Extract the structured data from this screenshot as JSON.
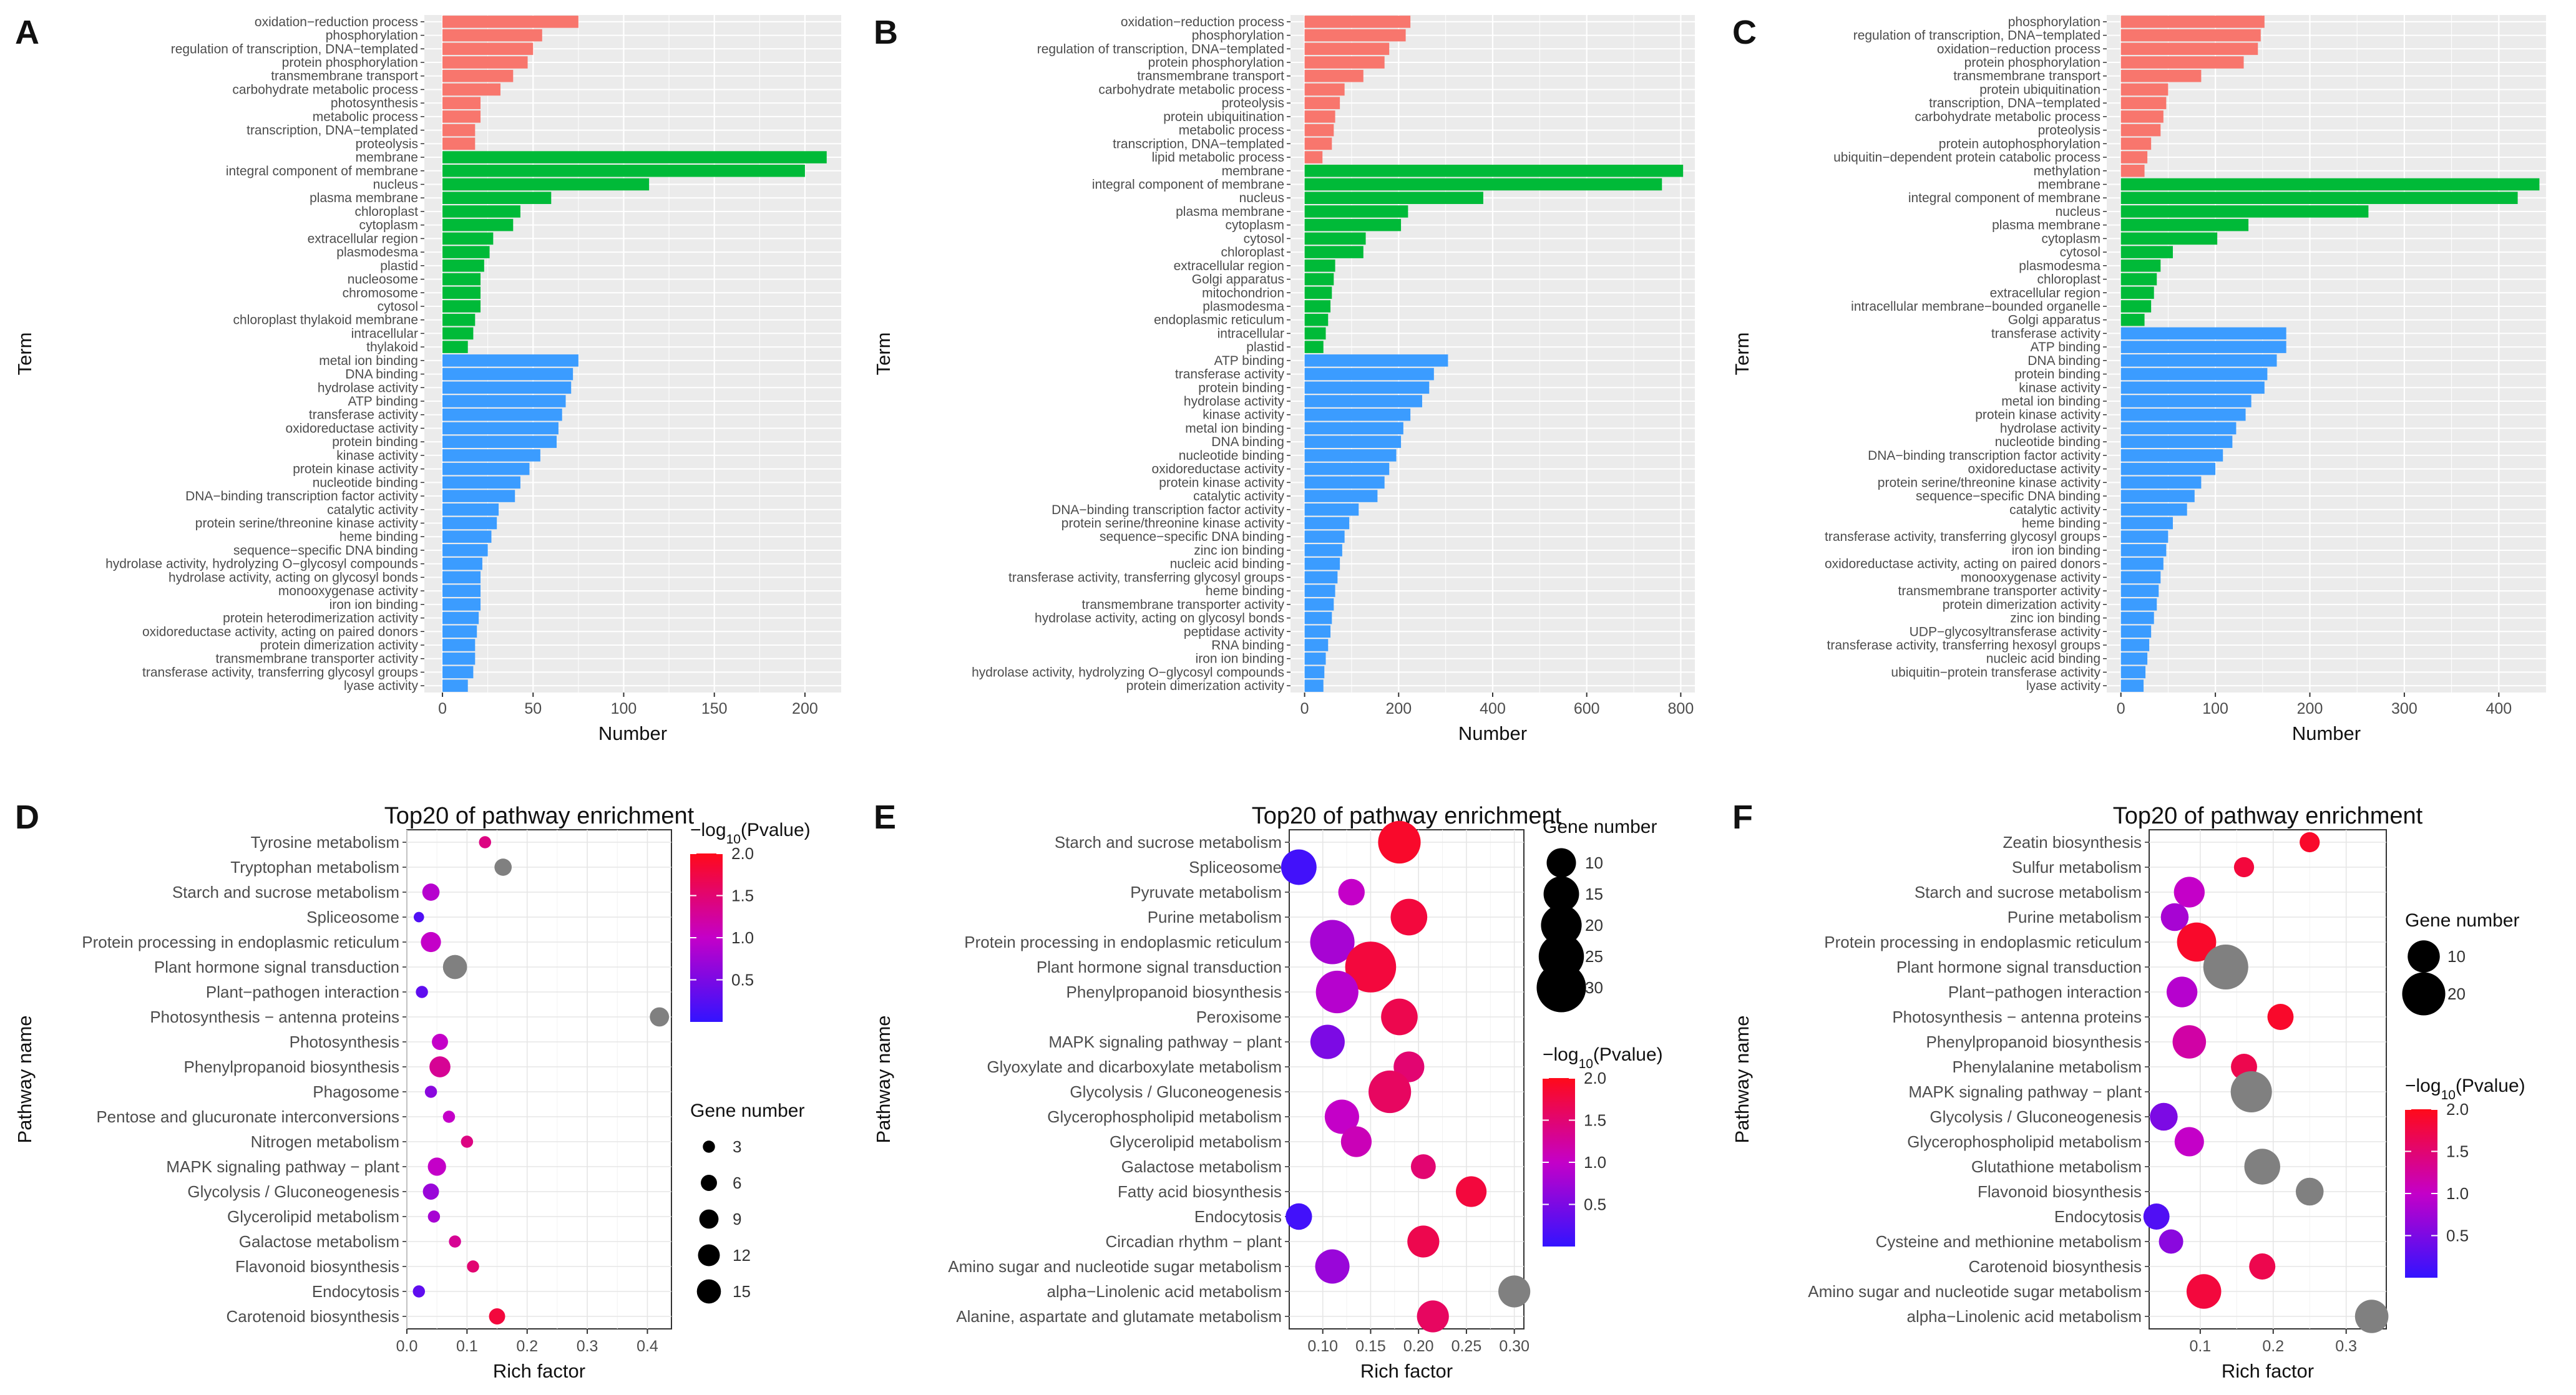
{
  "colors": {
    "bp": "#f8766d",
    "cc": "#00ba38",
    "mf": "#3b9cff",
    "panel_bg": "#ebebeb",
    "grid": "#ffffff",
    "grey_dot": "#808080"
  },
  "chart_data": [
    {
      "panel": "A",
      "type": "bar",
      "orientation": "horizontal",
      "xlabel": "Number",
      "ylabel": "Term",
      "xlim": [
        -10,
        220
      ],
      "xticks": [
        0,
        50,
        100,
        150,
        200
      ],
      "categories": [
        "oxidation−reduction process",
        "phosphorylation",
        "regulation of transcription, DNA−templated",
        "protein phosphorylation",
        "transmembrane transport",
        "carbohydrate metabolic process",
        "photosynthesis",
        "metabolic process",
        "transcription, DNA−templated",
        "proteolysis",
        "membrane",
        "integral component of membrane",
        "nucleus",
        "plasma membrane",
        "chloroplast",
        "cytoplasm",
        "extracellular region",
        "plasmodesma",
        "plastid",
        "nucleosome",
        "chromosome",
        "cytosol",
        "chloroplast thylakoid membrane",
        "intracellular",
        "thylakoid",
        "metal ion binding",
        "DNA binding",
        "hydrolase activity",
        "ATP binding",
        "transferase activity",
        "oxidoreductase activity",
        "protein binding",
        "kinase activity",
        "protein kinase activity",
        "nucleotide binding",
        "DNA−binding transcription factor activity",
        "catalytic activity",
        "protein serine/threonine kinase activity",
        "heme binding",
        "sequence−specific DNA binding",
        "hydrolase activity, hydrolyzing O−glycosyl compounds",
        "hydrolase activity, acting on glycosyl bonds",
        "monooxygenase activity",
        "iron ion binding",
        "protein heterodimerization activity",
        "oxidoreductase activity, acting on paired donors",
        "protein dimerization activity",
        "transmembrane transporter activity",
        "transferase activity, transferring glycosyl groups",
        "lyase activity"
      ],
      "values": [
        75,
        55,
        50,
        47,
        39,
        32,
        21,
        21,
        18,
        18,
        212,
        200,
        114,
        60,
        43,
        39,
        28,
        26,
        23,
        21,
        21,
        21,
        18,
        17,
        14,
        75,
        72,
        71,
        68,
        66,
        64,
        63,
        54,
        48,
        43,
        40,
        31,
        30,
        27,
        25,
        22,
        21,
        21,
        21,
        20,
        19,
        18,
        18,
        17,
        14
      ],
      "groups": [
        "bp",
        "bp",
        "bp",
        "bp",
        "bp",
        "bp",
        "bp",
        "bp",
        "bp",
        "bp",
        "cc",
        "cc",
        "cc",
        "cc",
        "cc",
        "cc",
        "cc",
        "cc",
        "cc",
        "cc",
        "cc",
        "cc",
        "cc",
        "cc",
        "cc",
        "mf",
        "mf",
        "mf",
        "mf",
        "mf",
        "mf",
        "mf",
        "mf",
        "mf",
        "mf",
        "mf",
        "mf",
        "mf",
        "mf",
        "mf",
        "mf",
        "mf",
        "mf",
        "mf",
        "mf",
        "mf",
        "mf",
        "mf",
        "mf",
        "mf"
      ]
    },
    {
      "panel": "B",
      "type": "bar",
      "orientation": "horizontal",
      "xlabel": "Number",
      "ylabel": "Term",
      "xlim": [
        -30,
        830
      ],
      "xticks": [
        0,
        200,
        400,
        600,
        800
      ],
      "categories": [
        "oxidation−reduction process",
        "phosphorylation",
        "regulation of transcription, DNA−templated",
        "protein phosphorylation",
        "transmembrane transport",
        "carbohydrate metabolic process",
        "proteolysis",
        "protein ubiquitination",
        "metabolic process",
        "transcription, DNA−templated",
        "lipid metabolic process",
        "membrane",
        "integral component of membrane",
        "nucleus",
        "plasma membrane",
        "cytoplasm",
        "cytosol",
        "chloroplast",
        "extracellular region",
        "Golgi apparatus",
        "mitochondrion",
        "plasmodesma",
        "endoplasmic reticulum",
        "intracellular",
        "plastid",
        "ATP binding",
        "transferase activity",
        "protein binding",
        "hydrolase activity",
        "kinase activity",
        "metal ion binding",
        "DNA binding",
        "nucleotide binding",
        "oxidoreductase activity",
        "protein kinase activity",
        "catalytic activity",
        "DNA−binding transcription factor activity",
        "protein serine/threonine kinase activity",
        "sequence−specific DNA binding",
        "zinc ion binding",
        "nucleic acid binding",
        "transferase activity, transferring glycosyl groups",
        "heme binding",
        "transmembrane transporter activity",
        "hydrolase activity, acting on glycosyl bonds",
        "peptidase activity",
        "RNA binding",
        "iron ion binding",
        "hydrolase activity, hydrolyzing O−glycosyl compounds",
        "protein dimerization activity"
      ],
      "values": [
        225,
        215,
        180,
        170,
        125,
        85,
        75,
        65,
        62,
        58,
        38,
        805,
        760,
        380,
        220,
        205,
        130,
        125,
        65,
        62,
        58,
        55,
        50,
        45,
        40,
        305,
        275,
        265,
        250,
        225,
        210,
        205,
        195,
        180,
        170,
        155,
        115,
        95,
        85,
        80,
        75,
        70,
        65,
        62,
        58,
        55,
        50,
        45,
        42,
        40
      ],
      "groups": [
        "bp",
        "bp",
        "bp",
        "bp",
        "bp",
        "bp",
        "bp",
        "bp",
        "bp",
        "bp",
        "bp",
        "cc",
        "cc",
        "cc",
        "cc",
        "cc",
        "cc",
        "cc",
        "cc",
        "cc",
        "cc",
        "cc",
        "cc",
        "cc",
        "cc",
        "mf",
        "mf",
        "mf",
        "mf",
        "mf",
        "mf",
        "mf",
        "mf",
        "mf",
        "mf",
        "mf",
        "mf",
        "mf",
        "mf",
        "mf",
        "mf",
        "mf",
        "mf",
        "mf",
        "mf",
        "mf",
        "mf",
        "mf",
        "mf",
        "mf"
      ]
    },
    {
      "panel": "C",
      "type": "bar",
      "orientation": "horizontal",
      "xlabel": "Number",
      "ylabel": "Term",
      "xlim": [
        -15,
        450
      ],
      "xticks": [
        0,
        100,
        200,
        300,
        400
      ],
      "categories": [
        "phosphorylation",
        "regulation of transcription, DNA−templated",
        "oxidation−reduction process",
        "protein phosphorylation",
        "transmembrane transport",
        "protein ubiquitination",
        "transcription, DNA−templated",
        "carbohydrate metabolic process",
        "proteolysis",
        "protein autophosphorylation",
        "ubiquitin−dependent protein catabolic process",
        "methylation",
        "membrane",
        "integral component of membrane",
        "nucleus",
        "plasma membrane",
        "cytoplasm",
        "cytosol",
        "plasmodesma",
        "chloroplast",
        "extracellular region",
        "intracellular membrane−bounded organelle",
        "Golgi apparatus",
        "transferase activity",
        "ATP binding",
        "DNA binding",
        "protein binding",
        "kinase activity",
        "metal ion binding",
        "protein kinase activity",
        "hydrolase activity",
        "nucleotide binding",
        "DNA−binding transcription factor activity",
        "oxidoreductase activity",
        "protein serine/threonine kinase activity",
        "sequence−specific DNA binding",
        "catalytic activity",
        "heme binding",
        "transferase activity, transferring glycosyl groups",
        "iron ion binding",
        "oxidoreductase activity, acting on paired donors",
        "monooxygenase activity",
        "transmembrane transporter activity",
        "protein dimerization activity",
        "zinc ion binding",
        "UDP−glycosyltransferase activity",
        "transferase activity, transferring hexosyl groups",
        "nucleic acid binding",
        "ubiquitin−protein transferase activity",
        "lyase activity"
      ],
      "values": [
        152,
        148,
        145,
        130,
        85,
        50,
        48,
        45,
        42,
        32,
        28,
        25,
        443,
        420,
        262,
        135,
        102,
        55,
        42,
        38,
        35,
        32,
        25,
        175,
        175,
        165,
        155,
        152,
        138,
        132,
        122,
        118,
        108,
        100,
        85,
        78,
        70,
        55,
        50,
        48,
        45,
        42,
        40,
        38,
        35,
        32,
        30,
        28,
        26,
        24
      ],
      "groups": [
        "bp",
        "bp",
        "bp",
        "bp",
        "bp",
        "bp",
        "bp",
        "bp",
        "bp",
        "bp",
        "bp",
        "bp",
        "cc",
        "cc",
        "cc",
        "cc",
        "cc",
        "cc",
        "cc",
        "cc",
        "cc",
        "cc",
        "cc",
        "mf",
        "mf",
        "mf",
        "mf",
        "mf",
        "mf",
        "mf",
        "mf",
        "mf",
        "mf",
        "mf",
        "mf",
        "mf",
        "mf",
        "mf",
        "mf",
        "mf",
        "mf",
        "mf",
        "mf",
        "mf",
        "mf",
        "mf",
        "mf",
        "mf",
        "mf",
        "mf"
      ]
    },
    {
      "panel": "D",
      "type": "scatter",
      "title": "Top20 of pathway enrichment",
      "xlabel": "Rich factor",
      "ylabel": "Pathway name",
      "xlim": [
        0,
        0.44
      ],
      "xticks": [
        0.0,
        0.1,
        0.2,
        0.3,
        0.4
      ],
      "xtick_labels": [
        "0.0",
        "0.1",
        "0.2",
        "0.3",
        "0.4"
      ],
      "pathways": [
        "Tyrosine metabolism",
        "Tryptophan metabolism",
        "Starch and sucrose metabolism",
        "Spliceosome",
        "Protein processing in endoplasmic reticulum",
        "Plant hormone signal transduction",
        "Plant−pathogen interaction",
        "Photosynthesis − antenna proteins",
        "Photosynthesis",
        "Phenylpropanoid biosynthesis",
        "Phagosome",
        "Pentose and glucuronate interconversions",
        "Nitrogen metabolism",
        "MAPK signaling pathway − plant",
        "Glycolysis / Gluconeogenesis",
        "Glycerolipid metabolism",
        "Galactose metabolism",
        "Flavonoid biosynthesis",
        "Endocytosis",
        "Carotenoid biosynthesis"
      ],
      "rich_factor": [
        0.13,
        0.16,
        0.04,
        0.02,
        0.04,
        0.08,
        0.025,
        0.42,
        0.055,
        0.055,
        0.04,
        0.07,
        0.1,
        0.05,
        0.04,
        0.045,
        0.08,
        0.11,
        0.02,
        0.15
      ],
      "gene_number": [
        3,
        7,
        7,
        2,
        10,
        15,
        3,
        9,
        6,
        11,
        3,
        3,
        3,
        8,
        6,
        3,
        3,
        3,
        3,
        6
      ],
      "neg_log10_p": [
        1.4,
        null,
        0.9,
        0.2,
        1.0,
        null,
        0.3,
        null,
        1.0,
        1.3,
        0.6,
        1.0,
        1.4,
        1.0,
        0.7,
        0.8,
        1.3,
        1.5,
        0.3,
        1.8
      ],
      "color_legend": {
        "title": "−log10(Pvalue)",
        "range": [
          0.0,
          2.0
        ],
        "ticks": [
          "2.0",
          "1.5",
          "1.0",
          "0.5"
        ]
      },
      "size_legend": {
        "title": "Gene number",
        "values": [
          3,
          6,
          9,
          12,
          15
        ]
      }
    },
    {
      "panel": "E",
      "type": "scatter",
      "title": "Top20 of pathway enrichment",
      "xlabel": "Rich factor",
      "ylabel": "Pathway name",
      "xlim": [
        0.065,
        0.31
      ],
      "xticks": [
        0.1,
        0.15,
        0.2,
        0.25,
        0.3
      ],
      "xtick_labels": [
        "0.10",
        "0.15",
        "0.20",
        "0.25",
        "0.30"
      ],
      "pathways": [
        "Starch and sucrose metabolism",
        "Spliceosome",
        "Pyruvate metabolism",
        "Purine metabolism",
        "Protein processing in endoplasmic reticulum",
        "Plant hormone signal transduction",
        "Phenylpropanoid biosynthesis",
        "Peroxisome",
        "MAPK signaling pathway − plant",
        "Glyoxylate and dicarboxylate metabolism",
        "Glycolysis / Gluconeogenesis",
        "Glycerophospholipid metabolism",
        "Glycerolipid metabolism",
        "Galactose metabolism",
        "Fatty acid biosynthesis",
        "Endocytosis",
        "Circadian rhythm − plant",
        "Amino sugar and nucleotide sugar metabolism",
        "alpha−Linolenic acid metabolism",
        "Alanine, aspartate and glutamate metabolism"
      ],
      "rich_factor": [
        0.18,
        0.075,
        0.13,
        0.19,
        0.11,
        0.15,
        0.115,
        0.18,
        0.105,
        0.19,
        0.17,
        0.12,
        0.135,
        0.205,
        0.255,
        0.075,
        0.205,
        0.11,
        0.3,
        0.215
      ],
      "gene_number": [
        22,
        15,
        8,
        16,
        24,
        32,
        22,
        16,
        14,
        11,
        22,
        14,
        11,
        7,
        11,
        8,
        12,
        14,
        12,
        12
      ],
      "neg_log10_p": [
        1.9,
        0.1,
        1.0,
        1.8,
        0.8,
        1.8,
        0.9,
        1.7,
        0.5,
        1.5,
        1.6,
        1.0,
        1.1,
        1.5,
        1.8,
        0.1,
        1.7,
        0.7,
        null,
        1.6
      ],
      "color_legend": {
        "title": "−log10(Pvalue)",
        "range": [
          0.0,
          2.0
        ],
        "ticks": [
          "2.0",
          "1.5",
          "1.0",
          "0.5"
        ]
      },
      "size_legend": {
        "title": "Gene number",
        "values": [
          10,
          15,
          20,
          25,
          30
        ]
      }
    },
    {
      "panel": "F",
      "type": "scatter",
      "title": "Top20 of pathway enrichment",
      "xlabel": "Rich factor",
      "ylabel": "Pathway name",
      "xlim": [
        0.03,
        0.355
      ],
      "xticks": [
        0.1,
        0.2,
        0.3
      ],
      "xtick_labels": [
        "0.1",
        "0.2",
        "0.3"
      ],
      "pathways": [
        "Zeatin biosynthesis",
        "Sulfur metabolism",
        "Starch and sucrose metabolism",
        "Purine metabolism",
        "Protein processing in endoplasmic reticulum",
        "Plant hormone signal transduction",
        "Plant−pathogen interaction",
        "Photosynthesis − antenna proteins",
        "Phenylpropanoid biosynthesis",
        "Phenylalanine metabolism",
        "MAPK signaling pathway − plant",
        "Glycolysis / Gluconeogenesis",
        "Glycerophospholipid metabolism",
        "Glutathione metabolism",
        "Flavonoid biosynthesis",
        "Endocytosis",
        "Cysteine and methionine metabolism",
        "Carotenoid biosynthesis",
        "Amino sugar and nucleotide sugar metabolism",
        "alpha−Linolenic acid metabolism"
      ],
      "rich_factor": [
        0.25,
        0.16,
        0.085,
        0.065,
        0.095,
        0.135,
        0.075,
        0.21,
        0.085,
        0.16,
        0.17,
        0.05,
        0.085,
        0.185,
        0.25,
        0.04,
        0.06,
        0.185,
        0.105,
        0.335
      ],
      "gene_number": [
        3,
        3,
        9,
        7,
        16,
        22,
        9,
        6,
        11,
        6,
        18,
        7,
        8,
        13,
        7,
        6,
        5,
        6,
        12,
        11
      ],
      "neg_log10_p": [
        1.9,
        1.8,
        1.0,
        0.8,
        1.9,
        null,
        0.9,
        1.9,
        1.2,
        1.7,
        null,
        0.5,
        1.0,
        null,
        null,
        0.2,
        0.6,
        1.7,
        1.8,
        null
      ],
      "color_legend": {
        "title": "−log10(Pvalue)",
        "range": [
          0.0,
          2.0
        ],
        "ticks": [
          "2.0",
          "1.5",
          "1.0",
          "0.5"
        ]
      },
      "size_legend": {
        "title": "Gene number",
        "values": [
          10,
          20
        ]
      }
    }
  ]
}
